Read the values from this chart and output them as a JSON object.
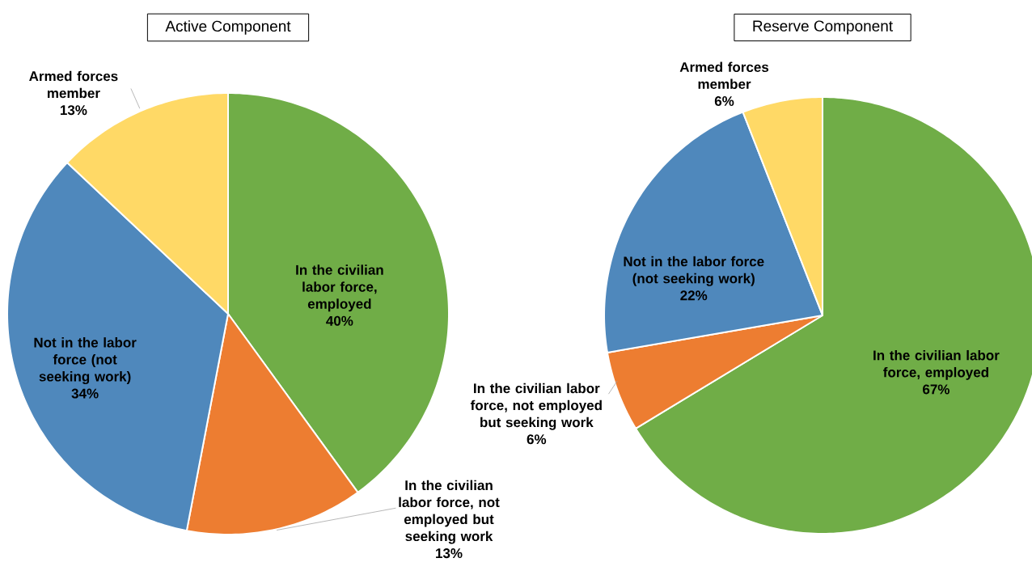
{
  "chart_data": [
    {
      "type": "pie",
      "title": "Active Component",
      "categories": [
        "In the civilian labor force, employed",
        "In the civilian labor force, not employed but seeking work",
        "Not in the labor force (not seeking work)",
        "Armed forces member"
      ],
      "values": [
        40,
        13,
        34,
        13
      ],
      "value_labels": [
        "40%",
        "13%",
        "34%",
        "13%"
      ],
      "colors": [
        "#70ad47",
        "#ed7d31",
        "#4f88bc",
        "#ffd966"
      ]
    },
    {
      "type": "pie",
      "title": "Reserve Component",
      "categories": [
        "In the civilian labor force, employed",
        "In the civilian labor force, not employed but seeking work",
        "Not in the labor force (not seeking work)",
        "Armed forces member"
      ],
      "values": [
        67,
        6,
        22,
        6
      ],
      "value_labels": [
        "67%",
        "6%",
        "22%",
        "6%"
      ],
      "colors": [
        "#70ad47",
        "#ed7d31",
        "#4f88bc",
        "#ffd966"
      ]
    }
  ]
}
